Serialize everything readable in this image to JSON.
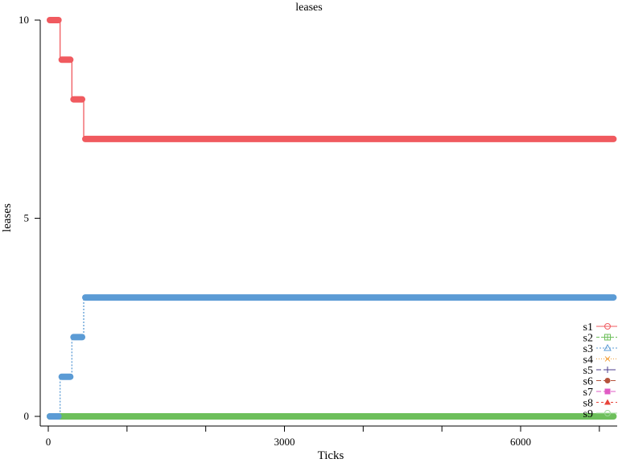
{
  "chart_data": {
    "type": "line",
    "title": "leases",
    "xlabel": "Ticks",
    "ylabel": "leases",
    "xlim": [
      0,
      7200
    ],
    "ylim": [
      0,
      10
    ],
    "x_ticks": [
      0,
      3000,
      6000
    ],
    "x_tick_labels": [
      "0",
      "3000",
      "6000"
    ],
    "x_minor_ticks": [
      0,
      1000,
      2000,
      3000,
      4000,
      5000,
      6000,
      7000
    ],
    "y_ticks": [
      0,
      5,
      10
    ],
    "y_tick_labels": [
      "0",
      "5",
      "10"
    ],
    "grid": false,
    "legend_position": "bottom-right",
    "series": [
      {
        "name": "s1",
        "color": "#f05a5f",
        "marker": "circle",
        "dash": "",
        "points": [
          [
            0,
            10
          ],
          [
            150,
            10
          ],
          [
            150,
            9
          ],
          [
            300,
            9
          ],
          [
            300,
            8
          ],
          [
            450,
            8
          ],
          [
            450,
            7
          ],
          [
            7200,
            7
          ]
        ]
      },
      {
        "name": "s2",
        "color": "#6dbf5b",
        "marker": "square-plus",
        "dash": "4,2",
        "points": [
          [
            0,
            0
          ],
          [
            7200,
            0
          ]
        ]
      },
      {
        "name": "s3",
        "color": "#5b9bd5",
        "marker": "triangle",
        "dash": "2,2",
        "points": [
          [
            0,
            0
          ],
          [
            150,
            0
          ],
          [
            150,
            1
          ],
          [
            300,
            1
          ],
          [
            300,
            2
          ],
          [
            450,
            2
          ],
          [
            450,
            3
          ],
          [
            7200,
            3
          ]
        ]
      },
      {
        "name": "s4",
        "color": "#f2a341",
        "marker": "x",
        "dash": "1,2",
        "points": []
      },
      {
        "name": "s5",
        "color": "#4b3c8c",
        "marker": "plus",
        "dash": "6,3",
        "points": []
      },
      {
        "name": "s6",
        "color": "#b5523b",
        "marker": "filled-circle",
        "dash": "6,3",
        "points": []
      },
      {
        "name": "s7",
        "color": "#e05bc4",
        "marker": "filled-square",
        "dash": "6,3",
        "points": []
      },
      {
        "name": "s8",
        "color": "#e8443a",
        "marker": "filled-triangle",
        "dash": "3,3",
        "points": []
      },
      {
        "name": "s9",
        "color": "#9fd89a",
        "marker": "circle",
        "dash": "",
        "points": []
      }
    ]
  }
}
